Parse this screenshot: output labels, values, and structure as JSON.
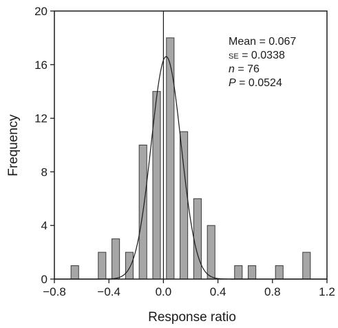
{
  "chart_data": {
    "type": "bar",
    "xlabel": "Response ratio",
    "ylabel": "Frequency",
    "xlim": [
      -0.8,
      1.2
    ],
    "ylim": [
      0,
      20
    ],
    "x_ticks": [
      -0.8,
      -0.4,
      0.0,
      0.4,
      0.8,
      1.2
    ],
    "x_tick_labels": [
      "−0.8",
      "−0.4",
      "0.0",
      "0.4",
      "0.8",
      "1.2"
    ],
    "y_ticks": [
      0,
      4,
      8,
      12,
      16,
      20
    ],
    "y_tick_labels": [
      "0",
      "4",
      "8",
      "12",
      "16",
      "20"
    ],
    "bin_width": 0.1,
    "bins": [
      {
        "x": -0.65,
        "value": 1
      },
      {
        "x": -0.45,
        "value": 2
      },
      {
        "x": -0.35,
        "value": 3
      },
      {
        "x": -0.25,
        "value": 2
      },
      {
        "x": -0.15,
        "value": 10
      },
      {
        "x": -0.05,
        "value": 14
      },
      {
        "x": 0.05,
        "value": 18
      },
      {
        "x": 0.15,
        "value": 11
      },
      {
        "x": 0.25,
        "value": 6
      },
      {
        "x": 0.35,
        "value": 4
      },
      {
        "x": 0.55,
        "value": 1
      },
      {
        "x": 0.65,
        "value": 1
      },
      {
        "x": 0.85,
        "value": 1
      },
      {
        "x": 1.05,
        "value": 2
      }
    ],
    "fitted_curve": {
      "type": "normal",
      "peak": 16.6,
      "mean": 0.02,
      "sd": 0.11
    },
    "reference_line_x": 0.0,
    "grid": false,
    "bar_color": "#a6a6a6",
    "annotations": [
      {
        "label": "Mean",
        "value": "0.067"
      },
      {
        "label": "SE",
        "value": "0.0338"
      },
      {
        "label": "n",
        "value": "76"
      },
      {
        "label": "P",
        "value": "0.0524"
      }
    ]
  }
}
